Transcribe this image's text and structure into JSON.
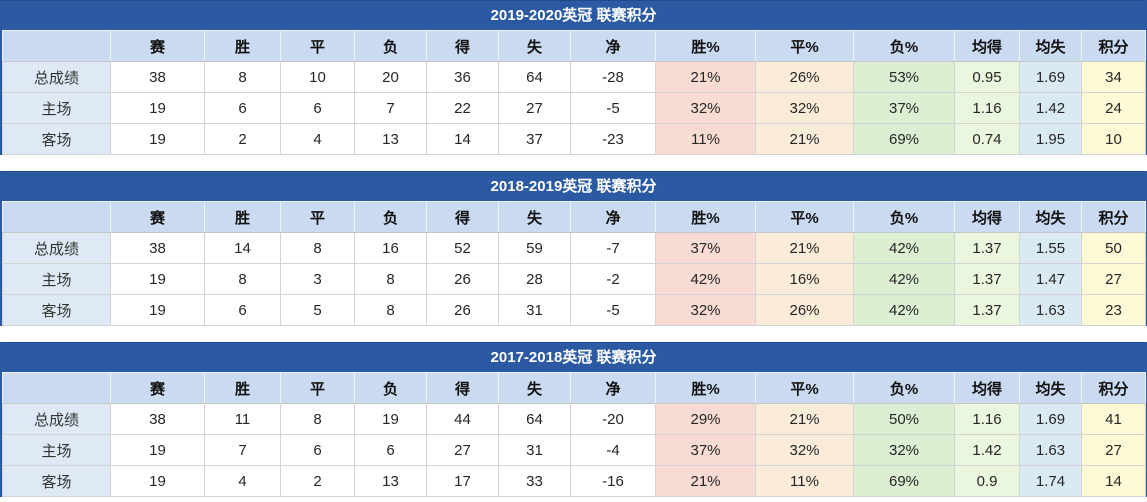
{
  "colors": {
    "brand_blue": "#2B5AA3",
    "title_text": "#FFFFFF",
    "header_bg": "#C9DAF1",
    "label_bg": "#DFE9F5",
    "win_pct_bg": "#F8DCD3",
    "draw_pct_bg": "#FAECD9",
    "loss_pct_bg": "#DDEFD2",
    "avg_for_bg": "#EAF6DE",
    "avg_against_bg": "#D9EAF2",
    "points_bg": "#FDF9D7",
    "grid_line": "#D3D3D3"
  },
  "chart_data": [
    {
      "type": "table",
      "title": "2019-2020英冠 联赛积分",
      "columns": [
        "",
        "赛",
        "胜",
        "平",
        "负",
        "得",
        "失",
        "净",
        "胜%",
        "平%",
        "负%",
        "均得",
        "均失",
        "积分"
      ],
      "rows": [
        {
          "label": "总成绩",
          "values": [
            "38",
            "8",
            "10",
            "20",
            "36",
            "64",
            "-28",
            "21%",
            "26%",
            "53%",
            "0.95",
            "1.69",
            "34"
          ]
        },
        {
          "label": "主场",
          "values": [
            "19",
            "6",
            "6",
            "7",
            "22",
            "27",
            "-5",
            "32%",
            "32%",
            "37%",
            "1.16",
            "1.42",
            "24"
          ]
        },
        {
          "label": "客场",
          "values": [
            "19",
            "2",
            "4",
            "13",
            "14",
            "37",
            "-23",
            "11%",
            "21%",
            "69%",
            "0.74",
            "1.95",
            "10"
          ]
        }
      ]
    },
    {
      "type": "table",
      "title": "2018-2019英冠 联赛积分",
      "columns": [
        "",
        "赛",
        "胜",
        "平",
        "负",
        "得",
        "失",
        "净",
        "胜%",
        "平%",
        "负%",
        "均得",
        "均失",
        "积分"
      ],
      "rows": [
        {
          "label": "总成绩",
          "values": [
            "38",
            "14",
            "8",
            "16",
            "52",
            "59",
            "-7",
            "37%",
            "21%",
            "42%",
            "1.37",
            "1.55",
            "50"
          ]
        },
        {
          "label": "主场",
          "values": [
            "19",
            "8",
            "3",
            "8",
            "26",
            "28",
            "-2",
            "42%",
            "16%",
            "42%",
            "1.37",
            "1.47",
            "27"
          ]
        },
        {
          "label": "客场",
          "values": [
            "19",
            "6",
            "5",
            "8",
            "26",
            "31",
            "-5",
            "32%",
            "26%",
            "42%",
            "1.37",
            "1.63",
            "23"
          ]
        }
      ]
    },
    {
      "type": "table",
      "title": "2017-2018英冠 联赛积分",
      "columns": [
        "",
        "赛",
        "胜",
        "平",
        "负",
        "得",
        "失",
        "净",
        "胜%",
        "平%",
        "负%",
        "均得",
        "均失",
        "积分"
      ],
      "rows": [
        {
          "label": "总成绩",
          "values": [
            "38",
            "11",
            "8",
            "19",
            "44",
            "64",
            "-20",
            "29%",
            "21%",
            "50%",
            "1.16",
            "1.69",
            "41"
          ]
        },
        {
          "label": "主场",
          "values": [
            "19",
            "7",
            "6",
            "6",
            "27",
            "31",
            "-4",
            "37%",
            "32%",
            "32%",
            "1.42",
            "1.63",
            "27"
          ]
        },
        {
          "label": "客场",
          "values": [
            "19",
            "4",
            "2",
            "13",
            "17",
            "33",
            "-16",
            "21%",
            "11%",
            "69%",
            "0.9",
            "1.74",
            "14"
          ]
        }
      ]
    }
  ]
}
